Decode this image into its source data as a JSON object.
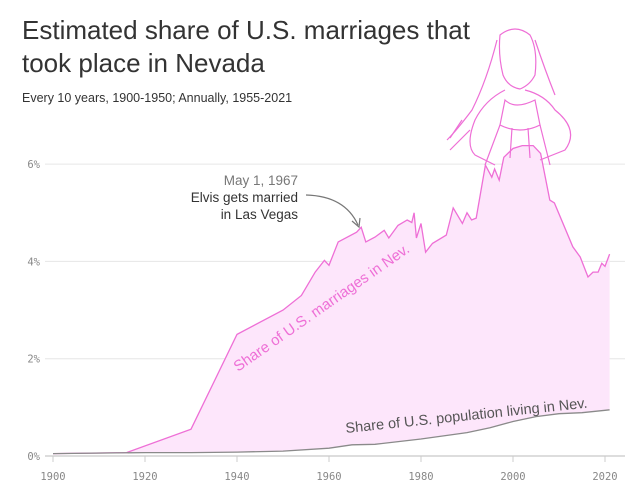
{
  "chart_data": {
    "type": "area",
    "title": "Estimated share of U.S. marriages that took place in Nevada",
    "subtitle": "Every 10 years, 1900-1950; Annually, 1955-2021",
    "xlim": [
      1900,
      2022
    ],
    "ylim": [
      0,
      6.5
    ],
    "x_ticks": [
      "1900",
      "1920",
      "1940",
      "1960",
      "1980",
      "2000",
      "2020"
    ],
    "y_ticks": [
      {
        "v": 0,
        "label": "0%"
      },
      {
        "v": 2,
        "label": "2%"
      },
      {
        "v": 4,
        "label": "4%"
      },
      {
        "v": 6,
        "label": "6%"
      }
    ],
    "grid": true,
    "colors": {
      "marriages": "#ee6fd6",
      "fill": "#fde6fb",
      "population": "#8a8a8a"
    },
    "series": [
      {
        "name": "Share of U.S. marriages in Nev.",
        "x": [
          1900,
          1916,
          1930,
          1940,
          1950,
          1954,
          1957,
          1959,
          1960,
          1962,
          1966,
          1967,
          1968,
          1970,
          1972,
          1973,
          1975,
          1977,
          1978,
          1978.5,
          1979,
          1980,
          1981,
          1982.5,
          1985.5,
          1987,
          1989,
          1990,
          1991,
          1992,
          1994,
          1995.4,
          1996,
          1997,
          1998,
          2000,
          2002,
          2004.4,
          2006,
          2008,
          2009,
          2013,
          2014.6,
          2016.3,
          2017.4,
          2018.5,
          2019.3,
          2020,
          2021
        ],
        "values": [
          0.05,
          0.07,
          0.55,
          2.5,
          3.0,
          3.3,
          3.78,
          4.02,
          3.92,
          4.4,
          4.6,
          4.7,
          4.4,
          4.5,
          4.64,
          4.48,
          4.74,
          4.85,
          4.8,
          5.0,
          4.48,
          4.78,
          4.19,
          4.37,
          4.54,
          5.1,
          4.78,
          5.0,
          4.85,
          4.89,
          5.98,
          5.73,
          5.9,
          5.67,
          6.14,
          6.32,
          6.38,
          6.38,
          6.22,
          5.26,
          5.2,
          4.3,
          4.09,
          3.68,
          3.78,
          3.78,
          3.96,
          3.9,
          4.15
        ]
      },
      {
        "name": "Share of U.S. population living in Nev.",
        "x": [
          1900,
          1920,
          1930,
          1940,
          1950,
          1960,
          1965,
          1970,
          1980,
          1990,
          1995,
          2000,
          2005,
          2010,
          2015,
          2020,
          2021
        ],
        "values": [
          0.05,
          0.07,
          0.07,
          0.08,
          0.1,
          0.16,
          0.23,
          0.24,
          0.35,
          0.48,
          0.58,
          0.71,
          0.81,
          0.87,
          0.89,
          0.94,
          0.95
        ]
      }
    ],
    "annotation": {
      "date": "May 1, 1967",
      "text_line1": "Elvis gets married",
      "text_line2": "in Las Vegas",
      "x": 1967,
      "y": 4.7
    }
  }
}
